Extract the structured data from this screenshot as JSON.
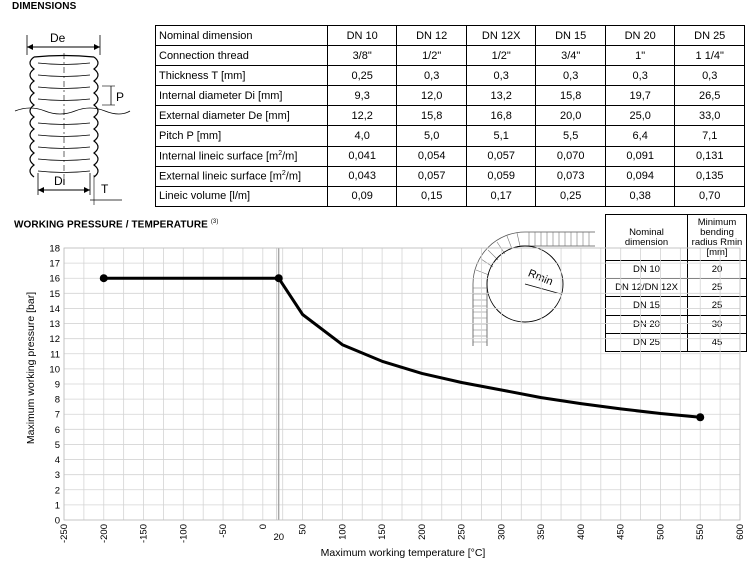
{
  "dimensions": {
    "title": "DIMENSIONS",
    "diagram": {
      "label_de": "De",
      "label_di": "Di",
      "label_p": "P",
      "label_t": "T"
    },
    "columns": [
      "Nominal dimension",
      "DN 10",
      "DN 12",
      "DN 12X",
      "DN 15",
      "DN 20",
      "DN 25"
    ],
    "rows": [
      {
        "pre": "Connection thread",
        "sup": "",
        "post": "",
        "values": [
          "3/8\"",
          "1/2\"",
          "1/2\"",
          "3/4\"",
          "1\"",
          "1 1/4\""
        ]
      },
      {
        "pre": "Thickness T [mm]",
        "sup": "",
        "post": "",
        "values": [
          "0,25",
          "0,3",
          "0,3",
          "0,3",
          "0,3",
          "0,3"
        ]
      },
      {
        "pre": "Internal diameter Di [mm]",
        "sup": "",
        "post": "",
        "values": [
          "9,3",
          "12,0",
          "13,2",
          "15,8",
          "19,7",
          "26,5"
        ]
      },
      {
        "pre": "External diameter De [mm]",
        "sup": "",
        "post": "",
        "values": [
          "12,2",
          "15,8",
          "16,8",
          "20,0",
          "25,0",
          "33,0"
        ]
      },
      {
        "pre": "Pitch P [mm]",
        "sup": "",
        "post": "",
        "values": [
          "4,0",
          "5,0",
          "5,1",
          "5,5",
          "6,4",
          "7,1"
        ]
      },
      {
        "pre": "Internal lineic surface [m",
        "sup": "2",
        "post": "/m]",
        "values": [
          "0,041",
          "0,054",
          "0,057",
          "0,070",
          "0,091",
          "0,131"
        ]
      },
      {
        "pre": "External lineic surface [m",
        "sup": "2",
        "post": "/m]",
        "values": [
          "0,043",
          "0,057",
          "0,059",
          "0,073",
          "0,094",
          "0,135"
        ]
      },
      {
        "pre": "Lineic volume [l/m]",
        "sup": "",
        "post": "",
        "values": [
          "0,09",
          "0,15",
          "0,17",
          "0,25",
          "0,38",
          "0,70"
        ]
      }
    ]
  },
  "working_pressure": {
    "title": "WORKING PRESSURE / TEMPERATURE",
    "title_sup": "(3)",
    "bend_diagram_label": "Rmin"
  },
  "bending_table": {
    "header": [
      "Nominal dimension",
      "Minimum bending radius Rmin [mm]"
    ],
    "rows": [
      [
        "DN 10",
        "20"
      ],
      [
        "DN 12/DN 12X",
        "25"
      ],
      [
        "DN 15",
        "25"
      ],
      [
        "DN 20",
        "30"
      ],
      [
        "DN 25",
        "45"
      ]
    ]
  },
  "chart_data": {
    "type": "line",
    "title": "",
    "xlabel": "Maximum working temperature [°C]",
    "ylabel": "Maximum working pressure [bar]",
    "xlim": [
      -250,
      600
    ],
    "ylim": [
      0,
      18
    ],
    "x_ticks": [
      -250,
      -200,
      -150,
      -100,
      -50,
      0,
      50,
      100,
      150,
      200,
      250,
      300,
      350,
      400,
      450,
      500,
      550,
      600
    ],
    "y_ticks": [
      0,
      1,
      2,
      3,
      4,
      5,
      6,
      7,
      8,
      9,
      10,
      11,
      12,
      13,
      14,
      15,
      16,
      17,
      18
    ],
    "extra_x_marker": {
      "value": 20,
      "label": "20"
    },
    "grid": true,
    "series": [
      {
        "x": [
          -200,
          20,
          50,
          100,
          150,
          200,
          250,
          300,
          350,
          400,
          450,
          500,
          550
        ],
        "y": [
          16,
          16,
          13.6,
          11.6,
          10.5,
          9.7,
          9.1,
          8.6,
          8.1,
          7.7,
          7.35,
          7.05,
          6.8
        ],
        "markers": [
          [
            -200,
            16
          ],
          [
            20,
            16
          ],
          [
            550,
            6.8
          ]
        ]
      }
    ]
  }
}
